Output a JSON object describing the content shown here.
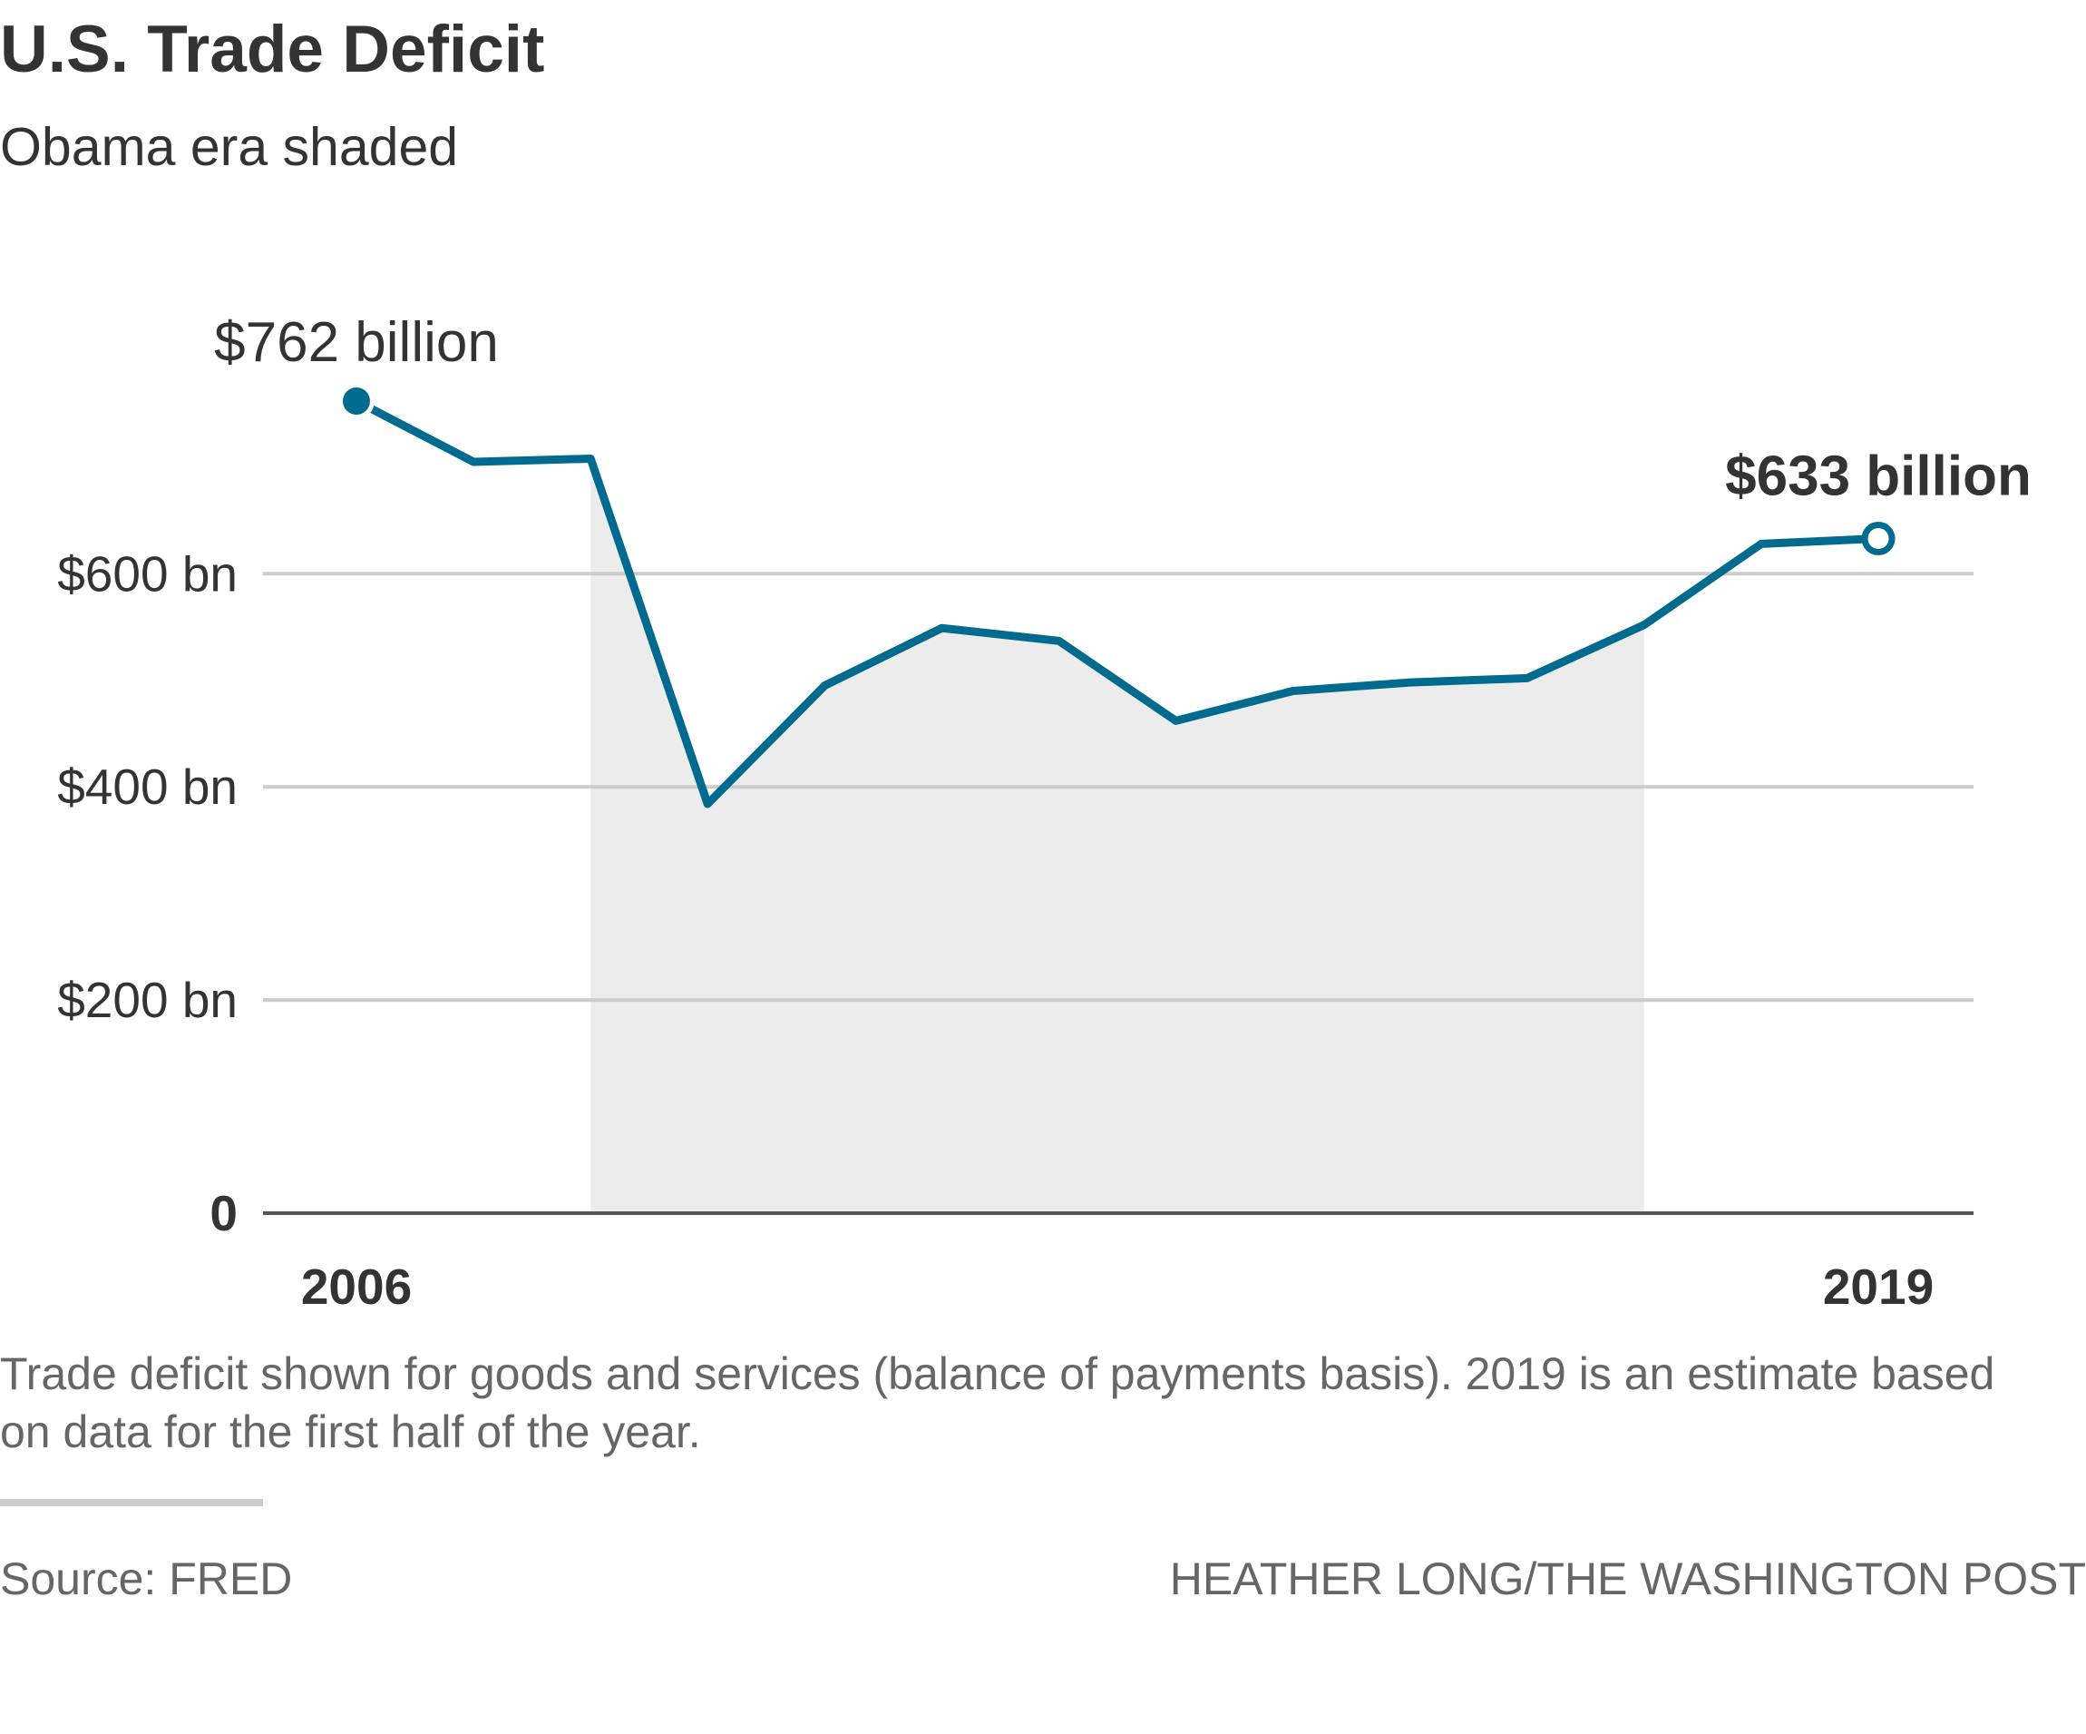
{
  "header": {
    "title": "U.S. Trade Deficit",
    "subtitle": "Obama era shaded"
  },
  "chart_data": {
    "type": "line",
    "title": "U.S. Trade Deficit",
    "subtitle": "Obama era shaded",
    "xlabel": "",
    "ylabel": "",
    "x": [
      2006,
      2007,
      2008,
      2009,
      2010,
      2011,
      2012,
      2013,
      2014,
      2015,
      2016,
      2017,
      2018,
      2019
    ],
    "series": [
      {
        "name": "Trade deficit",
        "values": [
          762,
          705,
          708,
          384,
          495,
          549,
          537,
          462,
          490,
          498,
          502,
          552,
          628,
          633
        ]
      }
    ],
    "ylim": [
      0,
      800
    ],
    "xlim": [
      2006,
      2019
    ],
    "y_ticks": [
      {
        "value": 0,
        "label": "0"
      },
      {
        "value": 200,
        "label": "$200 bn"
      },
      {
        "value": 400,
        "label": "$400 bn"
      },
      {
        "value": 600,
        "label": "$600 bn"
      }
    ],
    "x_ticks": [
      {
        "value": 2006,
        "label": "2006"
      },
      {
        "value": 2019,
        "label": "2019"
      }
    ],
    "shaded_region": {
      "label": "Obama era",
      "start": 2008,
      "end": 2017
    },
    "annotations": [
      {
        "x": 2006,
        "text": "$762 billion"
      },
      {
        "x": 2019,
        "text": "$633 billion"
      }
    ],
    "grid": true,
    "legend": "none"
  },
  "footer": {
    "note": "Trade deficit shown for goods and services (balance of payments basis). 2019 is an estimate based on data for the first half of the year.",
    "source": "Source: FRED",
    "credit": "HEATHER LONG/THE WASHINGTON POST"
  },
  "colors": {
    "line": "#006b8f",
    "shade": "#ececec",
    "grid": "#cccccc",
    "axis": "#555555",
    "text": "#333333",
    "muted": "#666666"
  }
}
